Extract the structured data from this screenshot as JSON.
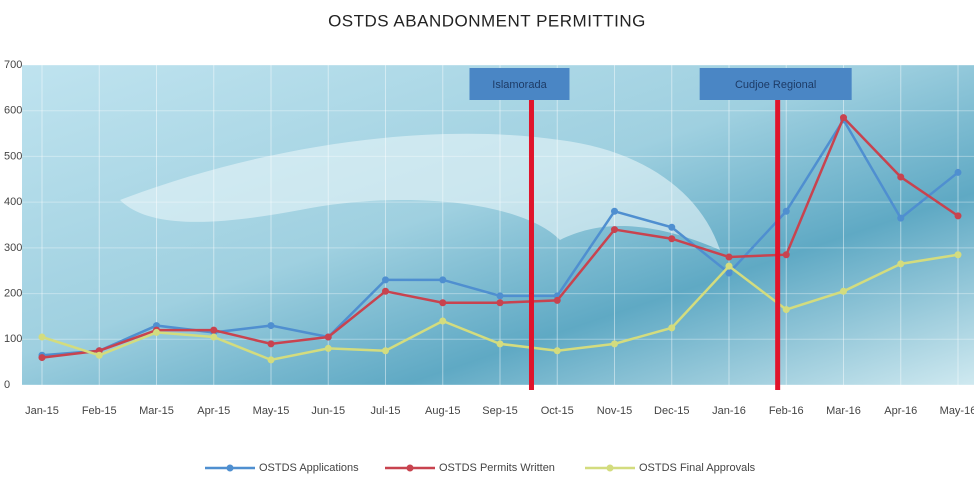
{
  "chart_data": {
    "type": "line",
    "title": "OSTDS ABANDONMENT PERMITTING",
    "categories": [
      "Jan-15",
      "Feb-15",
      "Mar-15",
      "Apr-15",
      "May-15",
      "Jun-15",
      "Jul-15",
      "Aug-15",
      "Sep-15",
      "Oct-15",
      "Nov-15",
      "Dec-15",
      "Jan-16",
      "Feb-16",
      "Mar-16",
      "Apr-16",
      "May-16"
    ],
    "series": [
      {
        "name": "OSTDS Applications",
        "color": "#4f8fd0",
        "values": [
          65,
          75,
          130,
          115,
          130,
          105,
          230,
          230,
          195,
          195,
          380,
          345,
          245,
          380,
          580,
          365,
          465
        ]
      },
      {
        "name": "OSTDS Permits Written",
        "color": "#c8434f",
        "values": [
          60,
          75,
          120,
          120,
          90,
          105,
          205,
          180,
          180,
          185,
          340,
          320,
          280,
          285,
          585,
          455,
          370
        ]
      },
      {
        "name": "OSTDS Final Approvals",
        "color": "#d3dc7e",
        "values": [
          105,
          65,
          115,
          105,
          55,
          80,
          75,
          140,
          90,
          75,
          90,
          125,
          260,
          165,
          205,
          265,
          285
        ]
      }
    ],
    "annotations": [
      "Islamorada",
      "Cudjoe Regional"
    ],
    "ylim": [
      0,
      700
    ],
    "yticks": [
      0,
      100,
      200,
      300,
      400,
      500,
      600,
      700
    ],
    "grid": true
  }
}
